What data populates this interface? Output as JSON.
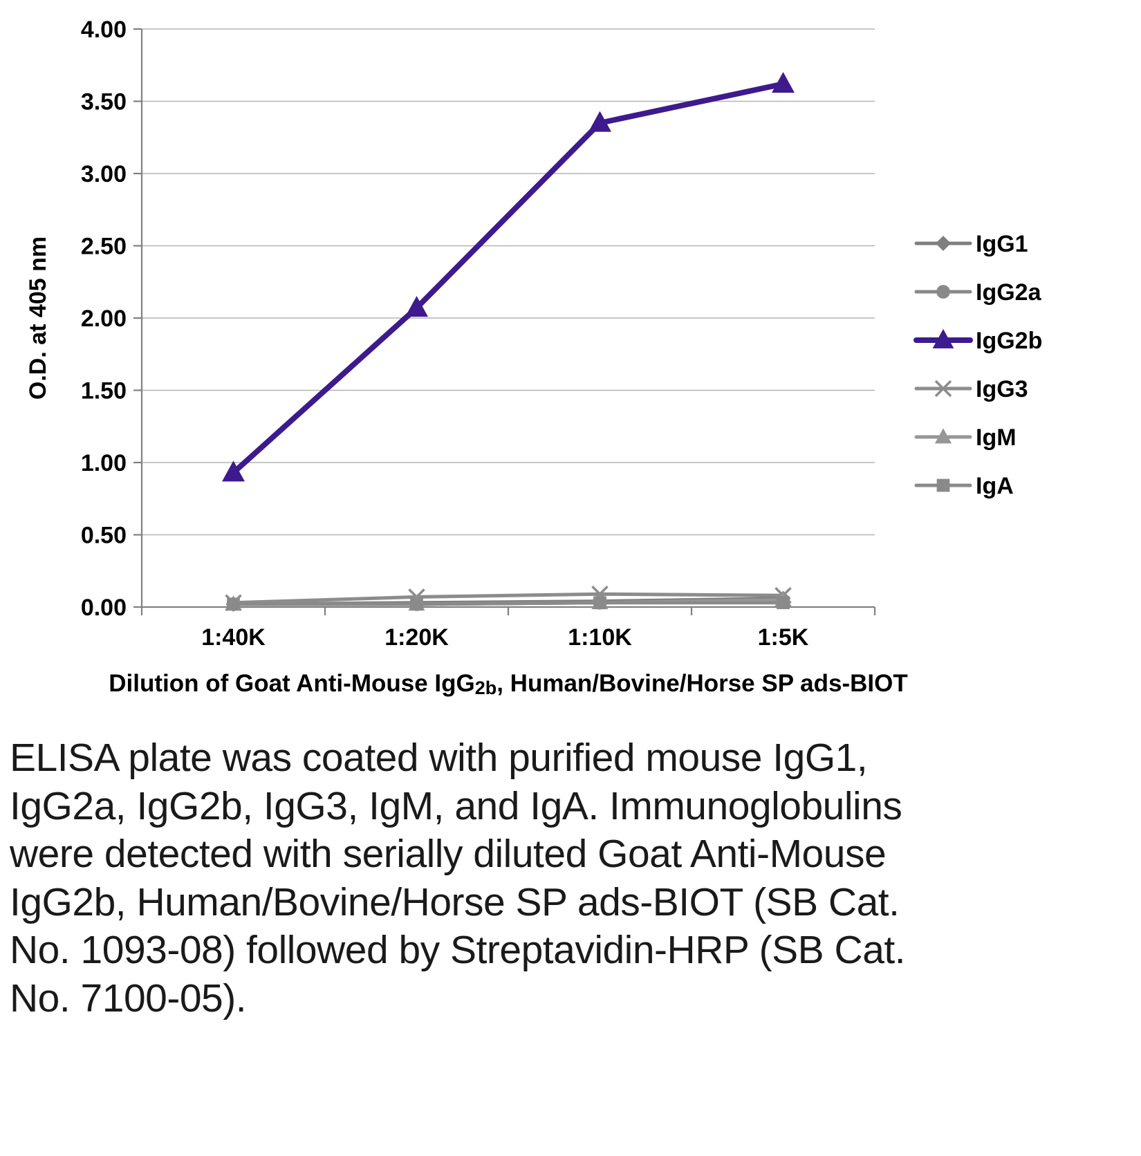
{
  "chart_data": {
    "type": "line",
    "title": "",
    "xlabel": "Dilution of Goat Anti-Mouse IgG2b, Human/Bovine/Horse SP ads-BIOT",
    "xlabel_main": "Dilution of Goat Anti-Mouse IgG",
    "xlabel_sub": "2b",
    "xlabel_rest": ", Human/Bovine/Horse SP ads-BIOT",
    "ylabel": "O.D. at 405 nm",
    "categories": [
      "1:40K",
      "1:20K",
      "1:10K",
      "1:5K"
    ],
    "ylim": [
      0.0,
      4.0
    ],
    "ytick_step": 0.5,
    "ytick_labels": [
      "0.00",
      "0.50",
      "1.00",
      "1.50",
      "2.00",
      "2.50",
      "3.00",
      "3.50",
      "4.00"
    ],
    "grid": true,
    "legend_position": "right",
    "axis_color": "#808080",
    "grid_color": "#b3b3b3",
    "label_color": "#000000",
    "series": [
      {
        "name": "IgG1",
        "marker": "diamond",
        "color": "#7f7f7f",
        "width": 5,
        "values": [
          0.02,
          0.03,
          0.04,
          0.06
        ]
      },
      {
        "name": "IgG2a",
        "marker": "circle",
        "color": "#898989",
        "width": 5,
        "values": [
          0.02,
          0.02,
          0.03,
          0.04
        ]
      },
      {
        "name": "IgG2b",
        "marker": "triangle",
        "color": "#3d1a8e",
        "width": 8,
        "values": [
          0.93,
          2.07,
          3.35,
          3.62
        ]
      },
      {
        "name": "IgG3",
        "marker": "x",
        "color": "#8c8c8c",
        "width": 5,
        "values": [
          0.03,
          0.07,
          0.09,
          0.08
        ]
      },
      {
        "name": "IgM",
        "marker": "triangle",
        "color": "#969696",
        "width": 5,
        "values": [
          0.02,
          0.02,
          0.03,
          0.05
        ]
      },
      {
        "name": "IgA",
        "marker": "square",
        "color": "#8a8a8a",
        "width": 5,
        "values": [
          0.02,
          0.02,
          0.03,
          0.03
        ]
      }
    ]
  },
  "caption": {
    "text": "ELISA plate was coated with purified mouse IgG1, IgG2a, IgG2b, IgG3, IgM, and IgA. Immunoglobulins were detected with serially diluted Goat Anti-Mouse IgG2b, Human/Bovine/Horse SP ads-BIOT (SB Cat. No. 1093-08) followed by Streptavidin-HRP (SB Cat. No. 7100-05)."
  }
}
